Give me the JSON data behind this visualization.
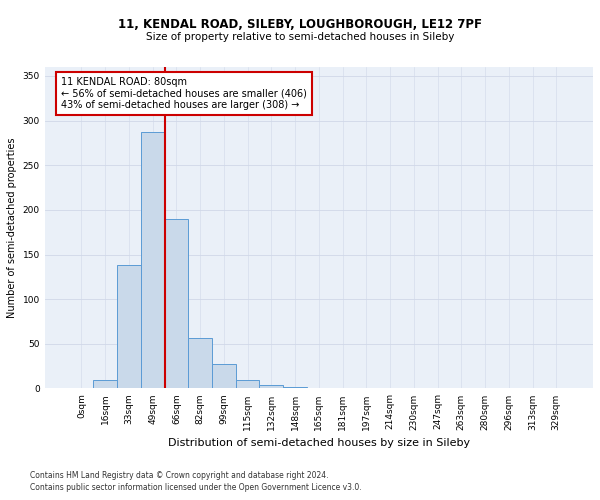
{
  "title_line1": "11, KENDAL ROAD, SILEBY, LOUGHBOROUGH, LE12 7PF",
  "title_line2": "Size of property relative to semi-detached houses in Sileby",
  "xlabel": "Distribution of semi-detached houses by size in Sileby",
  "ylabel": "Number of semi-detached properties",
  "footnote1": "Contains HM Land Registry data © Crown copyright and database right 2024.",
  "footnote2": "Contains public sector information licensed under the Open Government Licence v3.0.",
  "bar_labels": [
    "0sqm",
    "16sqm",
    "33sqm",
    "49sqm",
    "66sqm",
    "82sqm",
    "99sqm",
    "115sqm",
    "132sqm",
    "148sqm",
    "165sqm",
    "181sqm",
    "197sqm",
    "214sqm",
    "230sqm",
    "247sqm",
    "263sqm",
    "280sqm",
    "296sqm",
    "313sqm",
    "329sqm"
  ],
  "bar_values": [
    1,
    10,
    138,
    287,
    190,
    57,
    27,
    9,
    4,
    2,
    1,
    0,
    1,
    0,
    1,
    0,
    0,
    0,
    0,
    0,
    1
  ],
  "bar_color": "#c9d9ea",
  "bar_edge_color": "#5b9bd5",
  "ylim": [
    0,
    360
  ],
  "yticks": [
    0,
    50,
    100,
    150,
    200,
    250,
    300,
    350
  ],
  "annotation_text": "11 KENDAL ROAD: 80sqm\n← 56% of semi-detached houses are smaller (406)\n43% of semi-detached houses are larger (308) →",
  "annotation_box_color": "#ffffff",
  "annotation_box_edge_color": "#cc0000",
  "vline_color": "#cc0000",
  "vline_bin_index": 3,
  "grid_color": "#d0d8e8",
  "background_color": "#eaf0f8",
  "title1_fontsize": 8.5,
  "title2_fontsize": 7.5,
  "ylabel_fontsize": 7,
  "xlabel_fontsize": 8,
  "tick_fontsize": 6.5,
  "annot_fontsize": 7,
  "footnote_fontsize": 5.5
}
